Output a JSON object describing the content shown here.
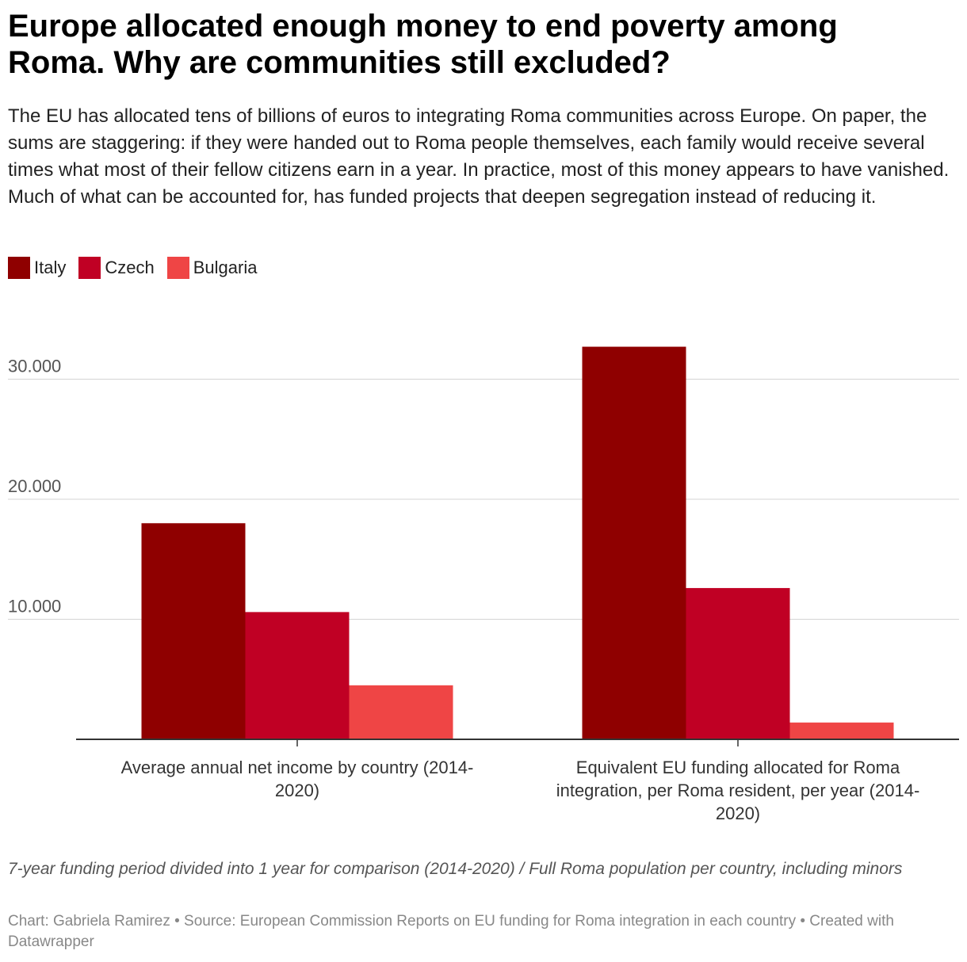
{
  "title": "Europe allocated enough money to end poverty among Roma. Why are communities still excluded?",
  "subtitle": "The EU has allocated tens of billions of euros to integrating Roma communities across Europe. On paper, the sums are staggering: if they were handed out to Roma people themselves, each family would receive several times what most of their fellow citizens earn in a year. In practice, most of this money appears to have vanished. Much of what can be accounted for, has funded projects that deepen segregation instead of reducing it.",
  "legend": [
    {
      "label": "Italy",
      "color": "#8f0000"
    },
    {
      "label": "Czech",
      "color": "#c00024"
    },
    {
      "label": "Bulgaria",
      "color": "#ef4545"
    }
  ],
  "chart_data": {
    "type": "bar",
    "categories": [
      [
        "Average annual net income by country (2014-",
        "2020)"
      ],
      [
        "Equivalent EU funding allocated for Roma",
        "integration, per Roma resident, per year (2014-",
        "2020)"
      ]
    ],
    "series": [
      {
        "name": "Italy",
        "color": "#8f0000",
        "values": [
          18000,
          32700
        ]
      },
      {
        "name": "Czech",
        "color": "#c00024",
        "values": [
          10600,
          12600
        ]
      },
      {
        "name": "Bulgaria",
        "color": "#ef4545",
        "values": [
          4500,
          1400
        ]
      }
    ],
    "y_ticks": [
      "10.000",
      "20.000",
      "30.000"
    ],
    "y_tick_values": [
      10000,
      20000,
      30000
    ],
    "ylim": [
      0,
      33000
    ],
    "grid": true
  },
  "note": "7-year funding period divided into 1 year for comparison (2014-2020) / Full Roma population per country, including minors",
  "footer": "Chart: Gabriela Ramirez • Source: European Commission Reports on EU funding for Roma integration in each country • Created with Datawrapper"
}
